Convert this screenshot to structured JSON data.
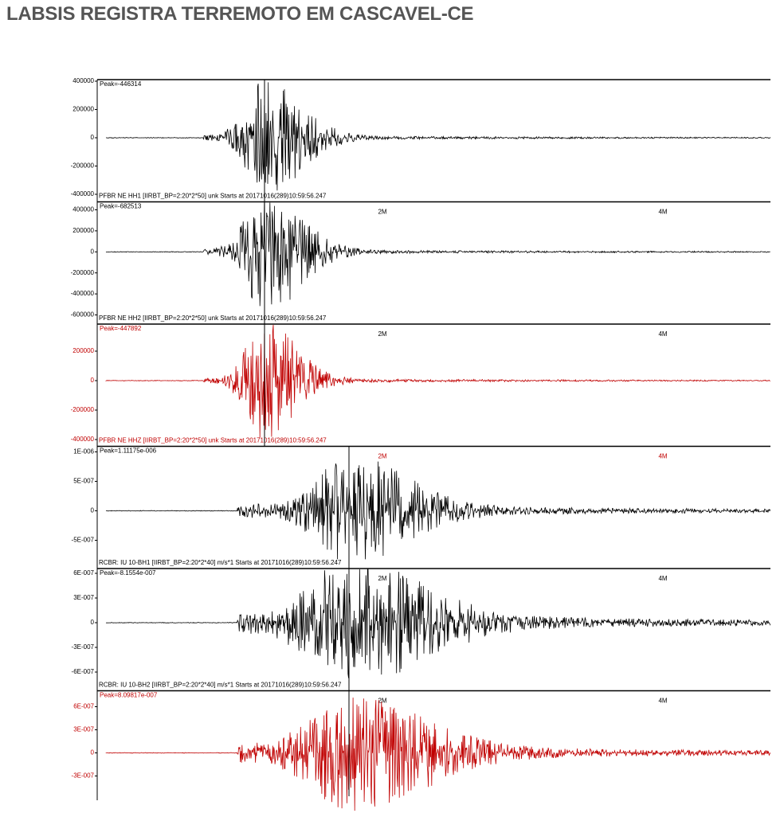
{
  "header": {
    "title": "LABSIS REGISTRA TERREMOTO EM CASCAVEL-CE"
  },
  "panels": [
    {
      "peak": "Peak=-446314",
      "ticks": [
        "400000",
        "200000",
        "0",
        "-200000",
        "-400000"
      ],
      "footer": "PFBR NE HH1  [IIRBT_BP=2:20*2*50] unk Starts at 20171016(289)10:59:56.247",
      "time_labels": [],
      "color": "#000000"
    },
    {
      "peak": "Peak=-682513",
      "ticks": [
        "400000",
        "200000",
        "0",
        "-200000",
        "-400000",
        "-600000"
      ],
      "footer": "PFBR NE HH2  [IIRBT_BP=2:20*2*50] unk Starts at 20171016(289)10:59:56.247",
      "time_labels": [
        "2M",
        "4M"
      ],
      "color": "#000000"
    },
    {
      "peak": "Peak=-447892",
      "ticks": [
        "200000",
        "0",
        "-200000",
        "-400000"
      ],
      "footer": "PFBR NE HHZ  [IIRBT_BP=2:20*2*50] unk Starts at 20171016(289)10:59:56.247",
      "time_labels": [
        "2M",
        "4M"
      ],
      "color": "#c00000"
    },
    {
      "peak": "Peak=1.11175e-006",
      "ticks": [
        "1E-006",
        "5E-007",
        "0",
        "-5E-007"
      ],
      "footer": "RCBR: IU 10-BH1  [IIRBT_BP=2:20*2*40] m/s*1 Starts at 20171016(289)10:59:56.247",
      "time_labels": [
        "2M",
        "4M"
      ],
      "color": "#000000"
    },
    {
      "peak": "Peak=-8.1554e-007",
      "ticks": [
        "6E-007",
        "3E-007",
        "0",
        "-3E-007",
        "-6E-007"
      ],
      "footer": "RCBR: IU 10-BH2  [IIRBT_BP=2:20*2*40] m/s*1 Starts at 20171016(289)10:59:56.247",
      "time_labels": [
        "2M",
        "4M"
      ],
      "color": "#000000"
    },
    {
      "peak": "Peak=8.09817e-007",
      "ticks": [
        "6E-007",
        "3E-007",
        "0",
        "-3E-007"
      ],
      "footer": "",
      "time_labels": [
        "2M",
        "4M"
      ],
      "color": "#c00000"
    }
  ]
}
